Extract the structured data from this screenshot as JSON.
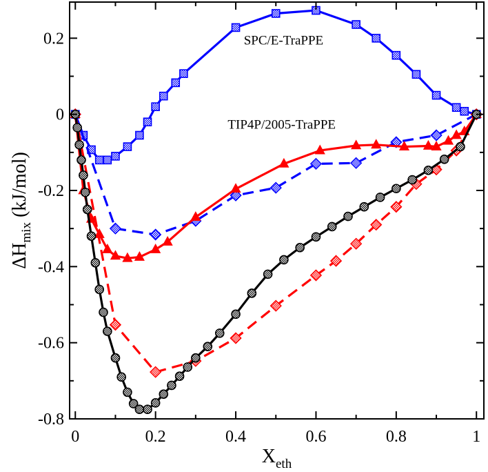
{
  "chart_data": {
    "type": "line",
    "title": "",
    "xlabel": {
      "main": "X",
      "sub": "eth"
    },
    "ylabel": {
      "main": "ΔH",
      "sub": "mix",
      "unit": " (kJ/mol)"
    },
    "xlim": [
      -0.0142,
      1.0185
    ],
    "ylim": [
      -0.8,
      0.2949
    ],
    "xticks": [
      0,
      0.2,
      0.4,
      0.6,
      0.8,
      1
    ],
    "xtick_labels": [
      "0",
      "0.2",
      "0.4",
      "0.6",
      "0.8",
      "1"
    ],
    "yticks": [
      -0.8,
      -0.6,
      -0.4,
      -0.2,
      0,
      0.2
    ],
    "ytick_labels": [
      "-0.8",
      "-0.6",
      "-0.4",
      "-0.2",
      "0",
      "0.2"
    ],
    "grid": false,
    "annotations": [
      {
        "text": "SPC/E-TraPPE",
        "x": 0.42,
        "y": 0.183
      },
      {
        "text": "TIP4P/2005-TraPPE",
        "x": 0.38,
        "y": -0.038
      }
    ],
    "series": [
      {
        "name": "SPC/E-TraPPE",
        "color": "#0000ff",
        "dash": "solid",
        "marker": "square-hatched",
        "x": [
          0,
          0.02,
          0.04,
          0.06,
          0.08,
          0.1,
          0.13,
          0.16,
          0.18,
          0.2,
          0.22,
          0.25,
          0.27,
          0.4,
          0.5,
          0.6,
          0.7,
          0.75,
          0.8,
          0.85,
          0.9,
          0.95,
          0.97,
          1.0
        ],
        "y": [
          0,
          -0.055,
          -0.093,
          -0.12,
          -0.12,
          -0.11,
          -0.085,
          -0.055,
          -0.02,
          0.02,
          0.048,
          0.083,
          0.107,
          0.228,
          0.265,
          0.273,
          0.236,
          0.2,
          0.155,
          0.105,
          0.05,
          0.018,
          0.008,
          0
        ]
      },
      {
        "name": "TIP4P/2005-TraPPE",
        "color": "#0000ff",
        "dash": "dashed",
        "marker": "diamond-hatched",
        "x": [
          0,
          0.1,
          0.2,
          0.3,
          0.4,
          0.5,
          0.6,
          0.7,
          0.8,
          0.9,
          1.0
        ],
        "y": [
          0,
          -0.3,
          -0.316,
          -0.28,
          -0.213,
          -0.193,
          -0.13,
          -0.128,
          -0.073,
          -0.055,
          0
        ]
      },
      {
        "name": "Red triangles",
        "color": "#ff0000",
        "dash": "solid",
        "marker": "triangle-filled",
        "x": [
          0,
          0.02,
          0.04,
          0.06,
          0.08,
          0.1,
          0.13,
          0.16,
          0.2,
          0.23,
          0.3,
          0.4,
          0.52,
          0.61,
          0.7,
          0.75,
          0.82,
          0.88,
          0.9,
          0.93,
          0.95,
          0.97,
          1.0
        ],
        "y": [
          0,
          -0.2,
          -0.275,
          -0.315,
          -0.355,
          -0.372,
          -0.378,
          -0.375,
          -0.355,
          -0.335,
          -0.27,
          -0.196,
          -0.13,
          -0.095,
          -0.082,
          -0.08,
          -0.085,
          -0.083,
          -0.085,
          -0.07,
          -0.055,
          -0.045,
          0
        ]
      },
      {
        "name": "Red diamonds",
        "color": "#ff0000",
        "dash": "dashed",
        "marker": "diamond-hatched",
        "x": [
          0,
          0.1,
          0.2,
          0.3,
          0.4,
          0.5,
          0.6,
          0.65,
          0.7,
          0.75,
          0.8,
          0.85,
          0.9,
          0.95,
          1.0
        ],
        "y": [
          0,
          -0.553,
          -0.677,
          -0.648,
          -0.588,
          -0.503,
          -0.423,
          -0.385,
          -0.34,
          -0.29,
          -0.243,
          -0.183,
          -0.145,
          -0.095,
          0
        ]
      },
      {
        "name": "Black circles",
        "color": "#000000",
        "dash": "solid",
        "marker": "circle-hatched",
        "x": [
          0,
          0.005,
          0.01,
          0.015,
          0.02,
          0.025,
          0.03,
          0.04,
          0.05,
          0.06,
          0.07,
          0.08,
          0.1,
          0.115,
          0.13,
          0.145,
          0.16,
          0.18,
          0.2,
          0.22,
          0.24,
          0.26,
          0.28,
          0.3,
          0.33,
          0.36,
          0.4,
          0.44,
          0.48,
          0.52,
          0.56,
          0.6,
          0.64,
          0.68,
          0.72,
          0.76,
          0.8,
          0.84,
          0.88,
          0.92,
          0.96,
          1.0
        ],
        "y": [
          0,
          -0.035,
          -0.08,
          -0.12,
          -0.16,
          -0.205,
          -0.25,
          -0.32,
          -0.39,
          -0.46,
          -0.52,
          -0.57,
          -0.64,
          -0.69,
          -0.73,
          -0.76,
          -0.775,
          -0.775,
          -0.758,
          -0.735,
          -0.712,
          -0.688,
          -0.664,
          -0.64,
          -0.61,
          -0.575,
          -0.525,
          -0.47,
          -0.42,
          -0.382,
          -0.35,
          -0.322,
          -0.295,
          -0.268,
          -0.243,
          -0.218,
          -0.195,
          -0.172,
          -0.147,
          -0.118,
          -0.085,
          0
        ]
      }
    ]
  }
}
